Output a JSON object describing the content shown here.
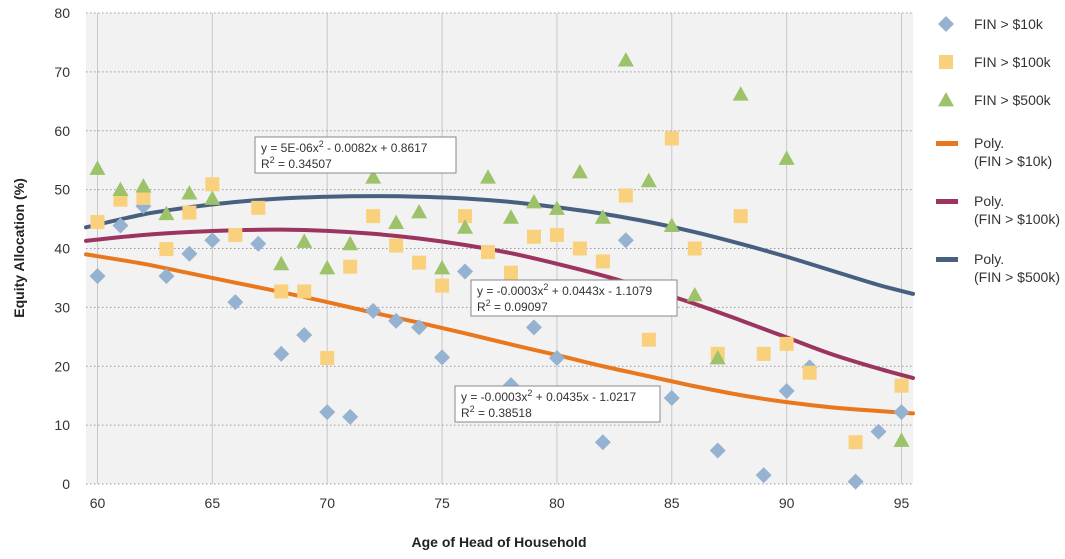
{
  "chart_data": {
    "type": "scatter",
    "xlabel": "Age of Head of Household",
    "ylabel": "Equity Allocation (%)",
    "xlim": [
      59.5,
      95.5
    ],
    "ylim": [
      0,
      80
    ],
    "x_ticks": [
      60,
      65,
      70,
      75,
      80,
      85,
      90,
      95
    ],
    "y_ticks": [
      0,
      10,
      20,
      30,
      40,
      50,
      60,
      70,
      80
    ],
    "grid": {
      "vertical": "solid",
      "horizontal": "dotted"
    },
    "legend_position": "right",
    "series": [
      {
        "name": "FIN > $10k",
        "marker": "diamond",
        "color": "#96b2d1",
        "x": [
          60,
          61,
          62,
          63,
          64,
          65,
          66,
          67,
          68,
          69,
          70,
          71,
          72,
          73,
          74,
          75,
          76,
          78,
          79,
          80,
          82,
          83,
          85,
          87,
          89,
          90,
          91,
          93,
          94,
          95
        ],
        "y": [
          35.3,
          43.9,
          47.2,
          35.3,
          39.1,
          41.4,
          30.9,
          40.8,
          22.1,
          25.3,
          12.2,
          11.4,
          29.4,
          27.7,
          26.6,
          21.5,
          36.1,
          16.8,
          26.6,
          21.4,
          7.1,
          41.4,
          14.6,
          5.7,
          1.5,
          15.8,
          19.8,
          0.4,
          8.9,
          12.2
        ]
      },
      {
        "name": "FIN > $100k",
        "marker": "square",
        "color": "#f9d17d",
        "x": [
          60,
          61,
          62,
          63,
          64,
          65,
          66,
          67,
          68,
          69,
          70,
          71,
          72,
          73,
          74,
          75,
          76,
          77,
          78,
          79,
          80,
          81,
          82,
          83,
          84,
          85,
          86,
          87,
          88,
          89,
          90,
          91,
          93,
          95
        ],
        "y": [
          44.5,
          48.3,
          48.6,
          39.9,
          46.1,
          50.9,
          42.3,
          46.9,
          32.7,
          32.7,
          21.4,
          36.9,
          45.5,
          40.5,
          37.6,
          33.7,
          45.5,
          39.4,
          35.9,
          42.0,
          42.3,
          40.0,
          37.8,
          49.0,
          24.5,
          58.7,
          40.0,
          22.1,
          45.5,
          22.1,
          23.8,
          18.9,
          7.1,
          16.7
        ]
      },
      {
        "name": "FIN > $500k",
        "marker": "triangle",
        "color": "#9cc26a",
        "x": [
          60,
          61,
          62,
          63,
          64,
          65,
          68,
          69,
          70,
          71,
          72,
          73,
          74,
          75,
          76,
          77,
          78,
          79,
          80,
          81,
          82,
          83,
          84,
          85,
          86,
          87,
          88,
          90,
          95
        ],
        "y": [
          53.6,
          50.0,
          50.6,
          45.9,
          49.4,
          48.5,
          37.4,
          41.2,
          36.7,
          40.8,
          52.1,
          44.4,
          46.2,
          36.7,
          43.6,
          52.1,
          45.3,
          47.9,
          46.8,
          53.0,
          45.3,
          72.0,
          51.5,
          43.9,
          32.1,
          21.4,
          66.2,
          55.3,
          7.4
        ]
      }
    ],
    "trendlines": [
      {
        "name": "Poly. (FIN > $10k)",
        "name_line1": "Poly.",
        "name_line2": "(FIN > $10k)",
        "color": "#e8771e",
        "x": [
          59.5,
          62,
          64,
          66,
          68,
          70,
          72,
          74,
          76,
          78,
          80,
          82,
          84,
          86,
          88,
          90,
          92,
          94,
          95.5
        ],
        "y": [
          39.0,
          37.4,
          35.8,
          34.2,
          32.6,
          30.9,
          29.1,
          27.4,
          25.6,
          23.7,
          21.9,
          20.0,
          18.3,
          16.6,
          15.1,
          13.9,
          13.0,
          12.4,
          12.0
        ]
      },
      {
        "name": "Poly. (FIN > $100k)",
        "name_line1": "Poly.",
        "name_line2": "(FIN > $100k)",
        "color": "#9c3460",
        "x": [
          59.5,
          62,
          64,
          66,
          68,
          70,
          72,
          74,
          76,
          78,
          80,
          82,
          84,
          86,
          88,
          90,
          92,
          94,
          95.5
        ],
        "y": [
          41.3,
          42.3,
          42.8,
          43.1,
          43.2,
          43.0,
          42.5,
          41.7,
          40.6,
          39.2,
          37.4,
          35.4,
          33.1,
          30.6,
          27.8,
          24.9,
          22.0,
          19.6,
          18.0
        ]
      },
      {
        "name": "Poly. (FIN > $500k)",
        "name_line1": "Poly.",
        "name_line2": "(FIN > $500k)",
        "color": "#47607f",
        "x": [
          59.5,
          62,
          64,
          66,
          68,
          70,
          72,
          74,
          76,
          78,
          80,
          82,
          84,
          86,
          88,
          90,
          92,
          94,
          95.5
        ],
        "y": [
          43.6,
          45.8,
          47.0,
          47.9,
          48.5,
          48.8,
          48.9,
          48.8,
          48.5,
          47.9,
          47.0,
          45.9,
          44.5,
          42.8,
          40.8,
          38.6,
          36.2,
          33.8,
          32.3
        ]
      }
    ],
    "annotations": [
      {
        "line1": "y  =  5E-06x",
        "sup": "2",
        "line1_rest": " - 0.0082x + 0.8617",
        "r2_label": "R",
        "r2_sup": "2",
        "r2_value": " =  0.34507"
      },
      {
        "line1": "y  =  -0.0003x",
        "sup": "2",
        "line1_rest": " + 0.0443x - 1.1079",
        "r2_label": "R",
        "r2_sup": "2",
        "r2_value": " =  0.09097"
      },
      {
        "line1": "y  =  -0.0003x",
        "sup": "2",
        "line1_rest": " + 0.0435x - 1.0217",
        "r2_label": "R",
        "r2_sup": "2",
        "r2_value": " =  0.38518"
      }
    ]
  }
}
